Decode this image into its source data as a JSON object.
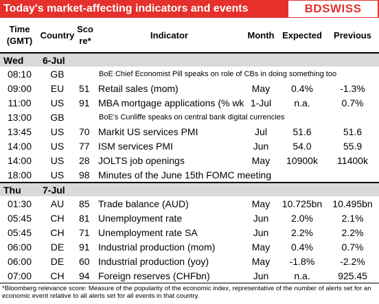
{
  "header": {
    "title": "Today's market-affecting indicators and events",
    "logo": "BDSWISS"
  },
  "table": {
    "columns": [
      "Time\n(GMT)",
      "Country",
      "Sco\nre*",
      "Indicator",
      "Month",
      "Expected",
      "Previous"
    ],
    "groups": [
      {
        "day": "Wed",
        "date": "6-Jul",
        "rows": [
          {
            "time": "08:10",
            "country": "GB",
            "event": "BoE Chief Economist Pill speaks on role of CBs in doing something too"
          },
          {
            "time": "09:00",
            "country": "EU",
            "score": "51",
            "indicator": "Retail sales (mom)",
            "month": "May",
            "expected": "0.4%",
            "previous": "-1.3%"
          },
          {
            "time": "11:00",
            "country": "US",
            "score": "91",
            "indicator": "MBA mortgage applications (% wk)",
            "month": "1-Jul",
            "expected": "n.a.",
            "previous": "0.7%"
          },
          {
            "time": "13:00",
            "country": "GB",
            "event": "BoE's Cunliffe speaks on central bank digital currencies"
          },
          {
            "time": "13:45",
            "country": "US",
            "score": "70",
            "indicator": "Markit US services PMI",
            "month": "Jul",
            "expected": "51.6",
            "previous": "51.6"
          },
          {
            "time": "14:00",
            "country": "US",
            "score": "77",
            "indicator": "ISM services PMI",
            "month": "Jun",
            "expected": "54.0",
            "previous": "55.9"
          },
          {
            "time": "14:00",
            "country": "US",
            "score": "28",
            "indicator": "JOLTS job openings",
            "month": "May",
            "expected": "10900k",
            "previous": "11400k"
          },
          {
            "time": "18:00",
            "country": "US",
            "score": "98",
            "indicator": "Minutes of the June 15th FOMC meeting"
          }
        ]
      },
      {
        "day": "Thu",
        "date": "7-Jul",
        "rows": [
          {
            "time": "01:30",
            "country": "AU",
            "score": "85",
            "indicator": "Trade balance (AUD)",
            "month": "May",
            "expected": "10.725bn",
            "previous": "10.495bn"
          },
          {
            "time": "05:45",
            "country": "CH",
            "score": "81",
            "indicator": "Unemployment rate",
            "month": "Jun",
            "expected": "2.0%",
            "previous": "2.1%"
          },
          {
            "time": "05:45",
            "country": "CH",
            "score": "71",
            "indicator": "Unemployment rate SA",
            "month": "Jun",
            "expected": "2.2%",
            "previous": "2.2%"
          },
          {
            "time": "06:00",
            "country": "DE",
            "score": "91",
            "indicator": "Industrial production (mom)",
            "month": "May",
            "expected": "0.4%",
            "previous": "0.7%"
          },
          {
            "time": "06:00",
            "country": "DE",
            "score": "60",
            "indicator": "Industrial production (yoy)",
            "month": "May",
            "expected": "-1.8%",
            "previous": "-2.2%"
          },
          {
            "time": "07:00",
            "country": "CH",
            "score": "94",
            "indicator": "Foreign reserves (CHFbn)",
            "month": "Jun",
            "expected": "n.a.",
            "previous": "925.45"
          }
        ]
      }
    ]
  },
  "footnote": "*Bloomberg relevance score: Measure of the popularity of the economic index, representative of the number of alerts set for an economic event relative to all alerts set for all events in that country."
}
